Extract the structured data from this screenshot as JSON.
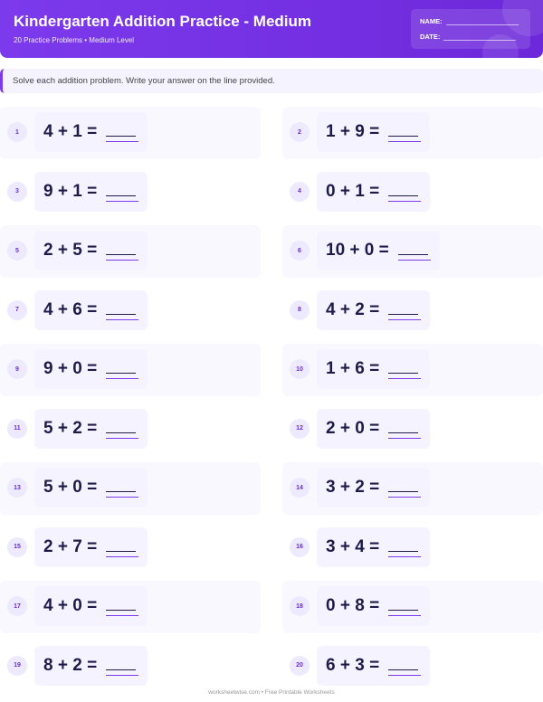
{
  "header": {
    "title": "Kindergarten Addition Practice - Medium",
    "subtitle": "20 Practice Problems • Medium Level",
    "name_label": "NAME:",
    "date_label": "DATE:"
  },
  "instructions": "Solve each addition problem. Write your answer on the line provided.",
  "problems": [
    {
      "n": "1",
      "q": "4 + 1 ="
    },
    {
      "n": "2",
      "q": "1 + 9 ="
    },
    {
      "n": "3",
      "q": "9 + 1 ="
    },
    {
      "n": "4",
      "q": "0 + 1 ="
    },
    {
      "n": "5",
      "q": "2 + 5 ="
    },
    {
      "n": "6",
      "q": "10 + 0 ="
    },
    {
      "n": "7",
      "q": "4 + 6 ="
    },
    {
      "n": "8",
      "q": "4 + 2 ="
    },
    {
      "n": "9",
      "q": "9 + 0 ="
    },
    {
      "n": "10",
      "q": "1 + 6 ="
    },
    {
      "n": "11",
      "q": "5 + 2 ="
    },
    {
      "n": "12",
      "q": "2 + 0 ="
    },
    {
      "n": "13",
      "q": "5 + 0 ="
    },
    {
      "n": "14",
      "q": "3 + 2 ="
    },
    {
      "n": "15",
      "q": "2 + 7 ="
    },
    {
      "n": "16",
      "q": "3 + 4 ="
    },
    {
      "n": "17",
      "q": "4 + 0 ="
    },
    {
      "n": "18",
      "q": "0 + 8 ="
    },
    {
      "n": "19",
      "q": "8 + 2 ="
    },
    {
      "n": "20",
      "q": "6 + 3 ="
    }
  ],
  "footer": "worksheetwise.com • Free Printable Worksheets",
  "colors": {
    "accent": "#7c3aed",
    "text": "#1e1b4b"
  }
}
